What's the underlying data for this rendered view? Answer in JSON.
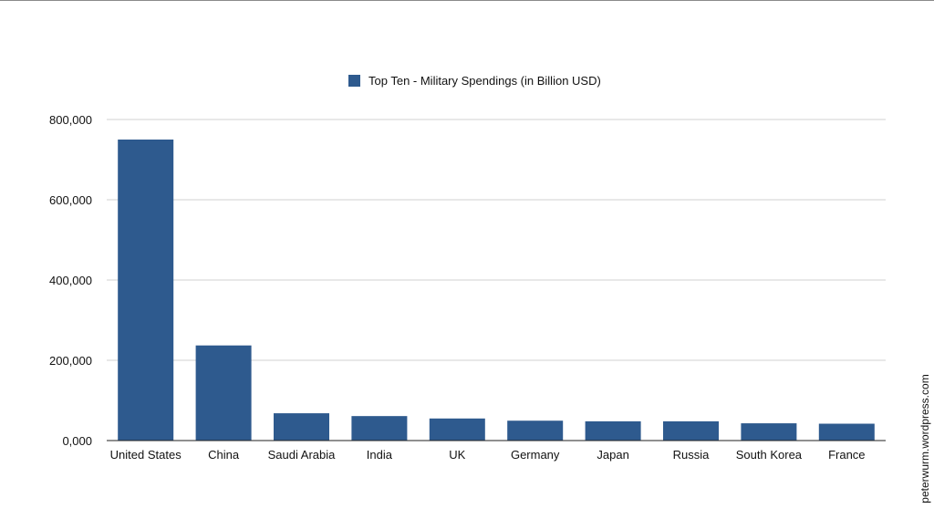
{
  "chart_data": {
    "type": "bar",
    "categories": [
      "United States",
      "China",
      "Saudi Arabia",
      "India",
      "UK",
      "Germany",
      "Japan",
      "Russia",
      "South Korea",
      "France"
    ],
    "series": [
      {
        "name": "Top Ten - Military Spendings (in Billion USD)",
        "values": [
          750000,
          237000,
          68000,
          61000,
          55000,
          49500,
          48000,
          48000,
          43000,
          42000
        ],
        "color": "#2e5a8e"
      }
    ],
    "ylim": [
      0,
      800000
    ],
    "yticks": [
      0,
      200000,
      400000,
      600000,
      800000
    ],
    "ytick_labels": [
      "0,000",
      "200,000",
      "400,000",
      "600,000",
      "800,000"
    ],
    "grid": true,
    "legend_position": "top-center",
    "xlabel": "",
    "ylabel": "",
    "title": ""
  },
  "watermark": "peterwurm.wordpress.com"
}
